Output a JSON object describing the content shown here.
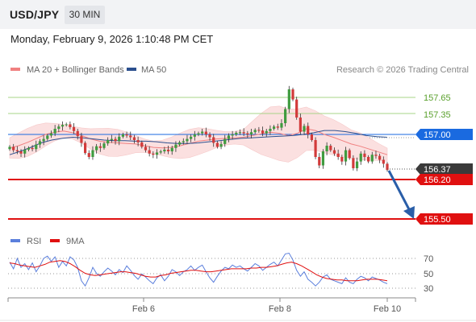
{
  "header": {
    "symbol": "USD/JPY",
    "timeframe": "30 MIN",
    "datetime": "Monday, February 9, 2026 1:10:48 PM CET"
  },
  "legend": {
    "ma20_label": "MA 20 + Bollinger Bands",
    "ma50_label": "MA 50",
    "ma20_color": "#f08080",
    "ma50_color": "#2b4f8e",
    "credit": "Research © 2026 Trading Central"
  },
  "levels": {
    "r2": "157.65",
    "r1": "157.35",
    "pivot": "157.00",
    "last": "156.37",
    "s1": "156.20",
    "s2": "155.50"
  },
  "rsi_legend": {
    "rsi_label": "RSI",
    "ma_label": "9MA",
    "rsi_color": "#5b7fdc",
    "ma_color": "#e01010"
  },
  "rsi_axis": [
    "70",
    "50",
    "30"
  ],
  "x_axis": [
    "Feb 6",
    "Feb 8",
    "Feb 10"
  ],
  "colors": {
    "resistance": "#7dbb4a",
    "pivot": "#1a6ae0",
    "support": "#e01010",
    "last": "#3a3a3a",
    "arrow": "#2a5ea8",
    "bull": "#3f9b3f",
    "bear": "#d23a3a"
  },
  "chart_data": {
    "type": "line",
    "title": "USD/JPY 30 MIN",
    "y_range": [
      155.4,
      158.2
    ],
    "series": [
      {
        "name": "Close",
        "values": [
          156.78,
          156.72,
          156.7,
          156.66,
          156.73,
          156.76,
          156.74,
          156.82,
          156.88,
          156.92,
          156.98,
          157.02,
          157.1,
          157.14,
          157.17,
          157.18,
          157.13,
          157.06,
          156.97,
          156.85,
          156.67,
          156.6,
          156.72,
          156.79,
          156.76,
          156.84,
          156.9,
          156.92,
          156.88,
          156.96,
          157.0,
          156.98,
          156.95,
          156.9,
          156.86,
          156.78,
          156.72,
          156.66,
          156.64,
          156.68,
          156.7,
          156.73,
          156.7,
          156.76,
          156.82,
          156.86,
          156.88,
          156.92,
          156.96,
          157.0,
          157.02,
          157.05,
          157.0,
          156.95,
          156.85,
          156.78,
          156.83,
          156.92,
          156.98,
          157.0,
          157.03,
          157.04,
          157.02,
          157.0,
          157.04,
          157.08,
          157.07,
          157.02,
          157.06,
          157.1,
          157.14,
          157.12,
          157.2,
          157.45,
          157.8,
          157.62,
          157.3,
          157.05,
          157.15,
          157.0,
          156.9,
          156.6,
          156.45,
          156.7,
          156.8,
          156.72,
          156.66,
          156.6,
          156.52,
          156.72,
          156.58,
          156.4,
          156.52,
          156.66,
          156.6,
          156.52,
          156.64,
          156.62,
          156.55,
          156.48,
          156.37
        ]
      },
      {
        "name": "MA 20",
        "values": [
          156.76,
          156.8,
          156.86,
          156.93,
          157.0,
          157.04,
          157.06,
          157.03,
          156.98,
          156.92,
          156.88,
          156.86,
          156.85,
          156.84,
          156.83,
          156.8,
          156.77,
          156.76,
          156.77,
          156.8,
          156.84,
          156.88,
          156.9,
          156.92,
          156.93,
          156.94,
          156.95,
          156.98,
          157.01,
          157.04,
          157.02,
          156.98,
          157.02,
          157.1,
          157.07,
          157.0,
          156.95,
          156.89,
          156.83,
          156.79,
          156.74,
          156.69,
          156.64
        ]
      },
      {
        "name": "MA 50",
        "values": [
          156.64,
          156.7,
          156.77,
          156.85,
          156.9,
          156.93,
          156.95,
          156.94,
          156.92,
          156.9,
          156.89,
          156.89,
          156.88,
          156.88,
          156.87,
          156.85,
          156.84,
          156.84,
          156.85,
          156.87,
          156.89,
          156.91,
          156.93,
          156.94,
          156.95,
          156.96,
          156.97,
          156.98,
          157.0,
          157.03,
          157.07,
          157.07,
          157.05,
          157.02,
          156.98,
          156.96,
          156.95
        ]
      }
    ],
    "annotations": {
      "r2": 157.65,
      "r1": 157.35,
      "pivot": 157.0,
      "last": 156.37,
      "s1": 156.2,
      "s2": 155.5
    },
    "rsi": {
      "ylim": [
        20,
        80
      ],
      "levels": [
        70,
        50,
        30
      ],
      "series": [
        {
          "name": "RSI",
          "values": [
            65,
            56,
            70,
            58,
            63,
            55,
            64,
            52,
            60,
            70,
            73,
            66,
            72,
            58,
            66,
            60,
            72,
            68,
            58,
            40,
            33,
            44,
            58,
            50,
            46,
            52,
            57,
            53,
            48,
            55,
            51,
            60,
            54,
            47,
            42,
            49,
            45,
            40,
            36,
            44,
            48,
            40,
            46,
            55,
            52,
            47,
            52,
            55,
            60,
            54,
            58,
            61,
            52,
            44,
            38,
            46,
            53,
            58,
            56,
            61,
            58,
            60,
            56,
            53,
            58,
            63,
            60,
            54,
            58,
            62,
            65,
            60,
            68,
            76,
            77,
            68,
            54,
            46,
            52,
            42,
            38,
            33,
            38,
            45,
            48,
            42,
            40,
            38,
            36,
            44,
            38,
            36,
            42,
            46,
            44,
            40,
            45,
            43,
            41,
            38,
            36
          ]
        },
        {
          "name": "9MA",
          "values": [
            64,
            63,
            61,
            60,
            59,
            58,
            60,
            62,
            65,
            66,
            67,
            66,
            63,
            59,
            54,
            50,
            48,
            47,
            48,
            49,
            50,
            51,
            52,
            52,
            51,
            50,
            48,
            46,
            45,
            45,
            47,
            48,
            50,
            51,
            52,
            53,
            54,
            54,
            53,
            52,
            52,
            53,
            54,
            55,
            56,
            56,
            56,
            56,
            57,
            57,
            58,
            58,
            59,
            60,
            62,
            64,
            65,
            63,
            60,
            56,
            52,
            48,
            45,
            43,
            42,
            41,
            41,
            40,
            40,
            40,
            41,
            42,
            42,
            42,
            41,
            40
          ]
        }
      ]
    },
    "x_labels": [
      "Feb 6",
      "Feb 8",
      "Feb 10"
    ]
  }
}
